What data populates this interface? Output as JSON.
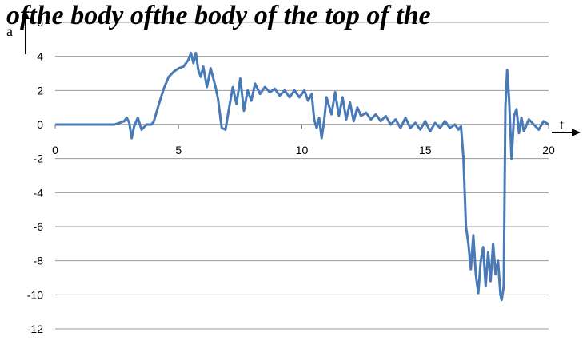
{
  "chart_data": {
    "type": "line",
    "title": "",
    "banner_text": "ofthe body ofthe body of the top of the",
    "xlabel": "t",
    "ylabel": "a",
    "xlim": [
      0,
      20
    ],
    "ylim": [
      -12,
      6
    ],
    "x_ticks": [
      "0",
      "5",
      "10",
      "15",
      "20"
    ],
    "y_ticks": [
      "6",
      "4",
      "2",
      "0",
      "-2",
      "-4",
      "-6",
      "-8",
      "-10",
      "-12"
    ],
    "grid": true,
    "line_color": "#4a7ab5",
    "series": [
      {
        "x": [
          0,
          0.5,
          1,
          1.5,
          2,
          2.4,
          2.6,
          2.8,
          2.9,
          3.0,
          3.1,
          3.2,
          3.35,
          3.5,
          3.7,
          3.9,
          4.0,
          4.2,
          4.4,
          4.6,
          4.8,
          5.0,
          5.2,
          5.4,
          5.5,
          5.6,
          5.7,
          5.8,
          5.9,
          6.0,
          6.15,
          6.3,
          6.5,
          6.6,
          6.75,
          6.9,
          7.05,
          7.2,
          7.35,
          7.5,
          7.65,
          7.8,
          7.95,
          8.1,
          8.3,
          8.5,
          8.7,
          8.9,
          9.1,
          9.3,
          9.5,
          9.7,
          9.9,
          10.1,
          10.25,
          10.4,
          10.5,
          10.6,
          10.7,
          10.8,
          10.9,
          11.0,
          11.2,
          11.35,
          11.5,
          11.65,
          11.8,
          11.95,
          12.1,
          12.25,
          12.4,
          12.6,
          12.8,
          13.0,
          13.2,
          13.4,
          13.6,
          13.8,
          14.0,
          14.2,
          14.4,
          14.6,
          14.8,
          15.0,
          15.2,
          15.4,
          15.6,
          15.8,
          16.0,
          16.2,
          16.35,
          16.45,
          16.55,
          16.65,
          16.75,
          16.85,
          16.95,
          17.05,
          17.15,
          17.25,
          17.35,
          17.45,
          17.55,
          17.65,
          17.75,
          17.85,
          17.95,
          18.05,
          18.1,
          18.18,
          18.25,
          18.32,
          18.4,
          18.5,
          18.6,
          18.7,
          18.8,
          18.9,
          19.0,
          19.2,
          19.4,
          19.6,
          19.8,
          20.0
        ],
        "y": [
          0,
          0,
          0,
          0,
          0,
          0,
          0.1,
          0.2,
          0.4,
          0.1,
          -0.8,
          -0.1,
          0.4,
          -0.3,
          0,
          0,
          0.2,
          1.2,
          2.1,
          2.8,
          3.1,
          3.3,
          3.4,
          3.8,
          4.2,
          3.6,
          4.2,
          3.2,
          2.8,
          3.4,
          2.2,
          3.3,
          2.2,
          1.5,
          -0.2,
          -0.3,
          1.0,
          2.2,
          1.2,
          2.7,
          0.8,
          2.0,
          1.4,
          2.4,
          1.8,
          2.2,
          1.9,
          2.1,
          1.7,
          2.0,
          1.6,
          2.0,
          1.6,
          2.0,
          1.4,
          1.8,
          0.3,
          -0.2,
          0.4,
          -0.8,
          0.2,
          1.6,
          0.6,
          1.9,
          0.5,
          1.6,
          0.3,
          1.3,
          0.2,
          1.0,
          0.5,
          0.7,
          0.3,
          0.6,
          0.2,
          0.5,
          0,
          0.3,
          -0.2,
          0.4,
          -0.2,
          0.1,
          -0.3,
          0.2,
          -0.4,
          0.1,
          -0.2,
          0.2,
          -0.2,
          0,
          -0.3,
          -0.1,
          -2.0,
          -6.0,
          -7.0,
          -8.5,
          -6.5,
          -8.8,
          -9.9,
          -8.0,
          -7.2,
          -9.5,
          -7.5,
          -9.2,
          -7.0,
          -8.8,
          -8.0,
          -10.0,
          -10.3,
          -9.5,
          1.0,
          3.2,
          1.5,
          -2.0,
          0.5,
          0.9,
          -0.5,
          0.4,
          -0.4,
          0.3,
          0,
          -0.3,
          0.2,
          0
        ]
      }
    ]
  }
}
